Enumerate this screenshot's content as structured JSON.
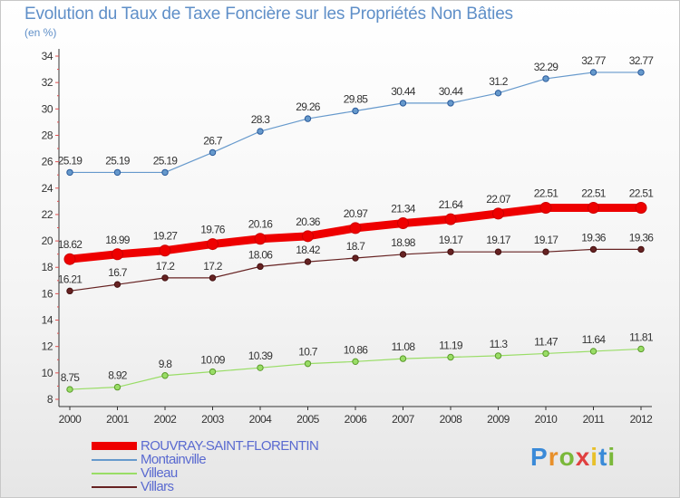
{
  "title": "Evolution du Taux de Taxe Foncière sur les Propriétés Non Bâties",
  "unit": "(en %)",
  "logo": "Proxiti",
  "chart_data": {
    "type": "line",
    "title": "Evolution du Taux de Taxe Foncière sur les Propriétés Non Bâties",
    "ylabel": "(en %)",
    "ylim": [
      8,
      34
    ],
    "yticks": [
      8,
      10,
      12,
      14,
      16,
      18,
      20,
      22,
      24,
      26,
      28,
      30,
      32,
      34
    ],
    "x": [
      "2000",
      "2001",
      "2002",
      "2003",
      "2004",
      "2005",
      "2006",
      "2007",
      "2008",
      "2009",
      "2010",
      "2011",
      "2012"
    ],
    "grid": false,
    "legend_position": "bottom-left",
    "series": [
      {
        "name": "ROUVRAY-SAINT-FLORENTIN",
        "color": "#ee0000",
        "values": [
          18.62,
          18.99,
          19.27,
          19.76,
          20.16,
          20.36,
          20.97,
          21.34,
          21.64,
          22.07,
          22.51,
          22.51,
          22.51
        ]
      },
      {
        "name": "Montainville",
        "color": "#6699cc",
        "values": [
          25.19,
          25.19,
          25.19,
          26.7,
          28.3,
          29.26,
          29.85,
          30.44,
          30.44,
          31.2,
          32.29,
          32.77,
          32.77
        ]
      },
      {
        "name": "Villeau",
        "color": "#99dd66",
        "values": [
          8.75,
          8.92,
          9.8,
          10.09,
          10.39,
          10.7,
          10.86,
          11.08,
          11.19,
          11.3,
          11.47,
          11.64,
          11.81
        ]
      },
      {
        "name": "Villars",
        "color": "#662222",
        "values": [
          16.21,
          16.7,
          17.2,
          17.2,
          18.06,
          18.42,
          18.7,
          18.98,
          19.17,
          19.17,
          19.17,
          19.36,
          19.36
        ]
      }
    ]
  }
}
